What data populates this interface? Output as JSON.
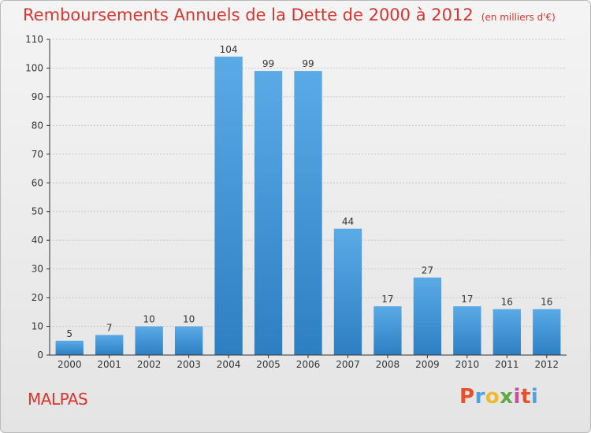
{
  "header": {
    "title": "Remboursements Annuels de la Dette de 2000 à 2012",
    "subtitle": "(en milliers d'€)"
  },
  "footer": {
    "town": "MALPAS",
    "logo_text": "Proxiti"
  },
  "colors": {
    "title": "#d5352e",
    "bar_top": "#5aaae6",
    "bar_bottom": "#2c7fc2",
    "grid": "#c8c8c8",
    "axis": "#333333"
  },
  "chart_data": {
    "type": "bar",
    "title": "Remboursements Annuels de la Dette de 2000 à 2012",
    "subtitle": "(en milliers d'€)",
    "xlabel": "",
    "ylabel": "",
    "categories": [
      "2000",
      "2001",
      "2002",
      "2003",
      "2004",
      "2005",
      "2006",
      "2007",
      "2008",
      "2009",
      "2010",
      "2011",
      "2012"
    ],
    "values": [
      5,
      7,
      10,
      10,
      104,
      99,
      99,
      44,
      17,
      27,
      17,
      16,
      16
    ],
    "ylim": [
      0,
      110
    ],
    "yticks": [
      0,
      10,
      20,
      30,
      40,
      50,
      60,
      70,
      80,
      90,
      100,
      110
    ],
    "grid": true,
    "data_labels": true,
    "legend": "none"
  }
}
